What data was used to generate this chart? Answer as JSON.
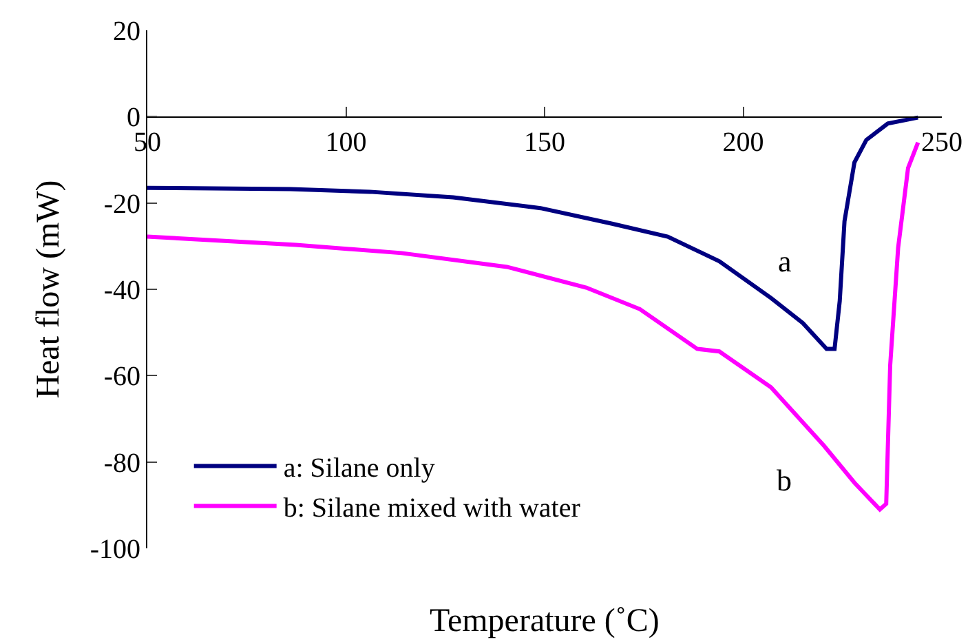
{
  "chart_data": {
    "type": "line",
    "xlabel": "Temperature (˚C)",
    "ylabel": "Heat flow (mW)",
    "xlim": [
      50,
      250
    ],
    "xticks": [
      50,
      100,
      150,
      200,
      250
    ],
    "ylim": [
      -100,
      20
    ],
    "yticks": [
      -100,
      -80,
      -60,
      -40,
      -20,
      0,
      20
    ],
    "legend": "bottom left",
    "marker": "none",
    "line_style": "solid",
    "annotations": [
      "a",
      "b"
    ],
    "series": [
      {
        "name": "a: Silane only",
        "color": "#000080",
        "x": [
          50,
          86,
          106,
          127,
          149,
          167,
          181,
          194,
          207,
          215,
          221,
          223,
          224.3,
          225.5,
          228,
          231,
          236.4,
          244
        ],
        "values": [
          -16.5,
          -16.8,
          -17.4,
          -18.7,
          -21.2,
          -24.8,
          -27.8,
          -33.5,
          -42,
          -47.8,
          -53.8,
          -53.8,
          -42.7,
          -24.2,
          -10.6,
          -5.4,
          -1.6,
          -0.2
        ]
      },
      {
        "name": "b: Silane mixed with water",
        "color": "#ff00ff",
        "x": [
          50,
          87.4,
          114,
          140.5,
          160.5,
          174,
          188.4,
          194,
          207,
          220.4,
          228,
          234.4,
          236,
          237,
          239,
          241.5,
          244
        ],
        "values": [
          -27.8,
          -29.7,
          -31.6,
          -34.8,
          -39.6,
          -44.6,
          -53.8,
          -54.4,
          -62.7,
          -76.3,
          -84.8,
          -91,
          -89.7,
          -57.6,
          -30.4,
          -11.9,
          -6
        ]
      }
    ]
  }
}
